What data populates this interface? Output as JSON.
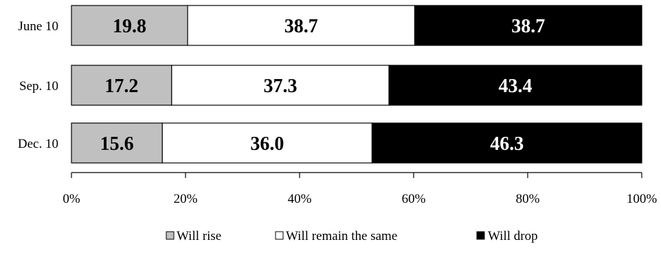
{
  "chart_data": {
    "type": "bar",
    "orientation": "horizontal",
    "stacked": true,
    "title": "",
    "xlabel": "",
    "ylabel": "",
    "xlim": [
      0,
      100
    ],
    "x_ticks": [
      "0%",
      "20%",
      "40%",
      "60%",
      "80%",
      "100%"
    ],
    "categories": [
      "June 10",
      "Sep. 10",
      "Dec. 10"
    ],
    "series": [
      {
        "name": "Will rise",
        "values": [
          19.8,
          17.2,
          15.6
        ],
        "labels": [
          "19.8",
          "17.2",
          "15.6"
        ],
        "color": "#c0c0c0",
        "text_color": "#000000"
      },
      {
        "name": "Will remain the same",
        "values": [
          38.7,
          37.3,
          36.0
        ],
        "labels": [
          "38.7",
          "37.3",
          "36.0"
        ],
        "color": "#ffffff",
        "text_color": "#000000"
      },
      {
        "name": "Will drop",
        "values": [
          38.7,
          43.4,
          46.3
        ],
        "labels": [
          "38.7",
          "43.4",
          "46.3"
        ],
        "color": "#000000",
        "text_color": "#ffffff"
      }
    ],
    "grid": false,
    "legend_position": "bottom"
  }
}
